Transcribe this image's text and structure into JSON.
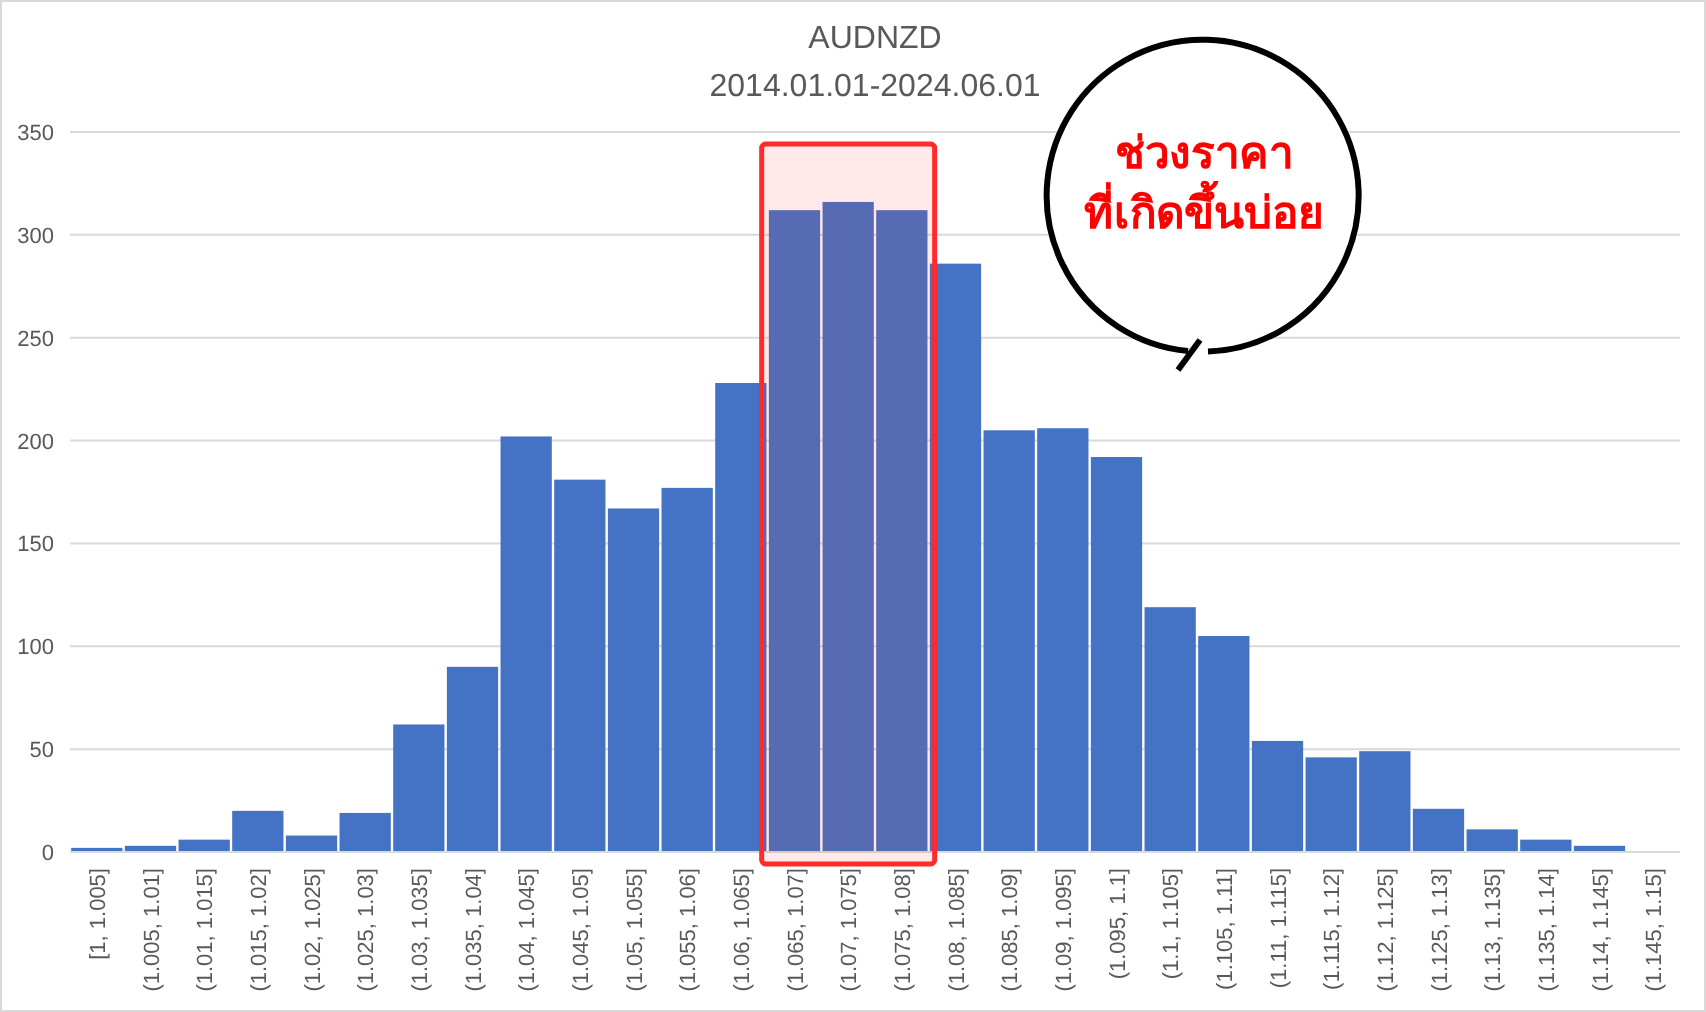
{
  "chart_data": {
    "type": "bar",
    "title": "AUDNZD",
    "subtitle": "2014.01.01-2024.06.01",
    "categories": [
      "[1, 1.005]",
      "(1.005, 1.01]",
      "(1.01, 1.015]",
      "(1.015, 1.02]",
      "(1.02, 1.025]",
      "(1.025, 1.03]",
      "(1.03, 1.035]",
      "(1.035, 1.04]",
      "(1.04, 1.045]",
      "(1.045, 1.05]",
      "(1.05, 1.055]",
      "(1.055, 1.06]",
      "(1.06, 1.065]",
      "(1.065, 1.07]",
      "(1.07, 1.075]",
      "(1.075, 1.08]",
      "(1.08, 1.085]",
      "(1.085, 1.09]",
      "(1.09, 1.095]",
      "(1.095, 1.1]",
      "(1.1, 1.105]",
      "(1.105, 1.11]",
      "(1.11, 1.115]",
      "(1.115, 1.12]",
      "(1.12, 1.125]",
      "(1.125, 1.13]",
      "(1.13, 1.135]",
      "(1.135, 1.14]",
      "(1.14, 1.145]",
      "(1.145, 1.15]"
    ],
    "values": [
      2,
      3,
      6,
      20,
      8,
      19,
      62,
      90,
      202,
      181,
      167,
      177,
      228,
      312,
      316,
      312,
      286,
      205,
      206,
      192,
      119,
      105,
      54,
      46,
      49,
      21,
      11,
      6,
      3,
      0
    ],
    "color": "#4472c4",
    "ylim": [
      0,
      350
    ],
    "yticks": [
      0,
      50,
      100,
      150,
      200,
      250,
      300,
      350
    ],
    "grid": "y",
    "bands": [
      {
        "axis": "x",
        "from": "(1.065, 1.07]",
        "to": "(1.075, 1.08]",
        "color": "#ff2a2a"
      }
    ],
    "annotations": [
      "ช่วงราคา\nที่เกิดขึ้นบ่อย"
    ]
  }
}
